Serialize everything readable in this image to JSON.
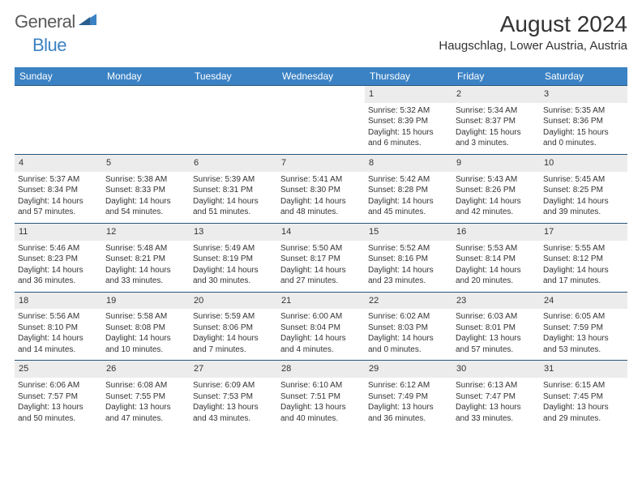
{
  "brand": {
    "text1": "General",
    "text2": "Blue"
  },
  "title": "August 2024",
  "location": "Haugschlag, Lower Austria, Austria",
  "header_bg": "#3b82c4",
  "header_fg": "#ffffff",
  "row_border": "#28567a",
  "daynum_bg": "#ececec",
  "weekdays": [
    "Sunday",
    "Monday",
    "Tuesday",
    "Wednesday",
    "Thursday",
    "Friday",
    "Saturday"
  ],
  "weeks": [
    [
      null,
      null,
      null,
      null,
      {
        "n": "1",
        "sr": "5:32 AM",
        "ss": "8:39 PM",
        "dl": "15 hours and 6 minutes."
      },
      {
        "n": "2",
        "sr": "5:34 AM",
        "ss": "8:37 PM",
        "dl": "15 hours and 3 minutes."
      },
      {
        "n": "3",
        "sr": "5:35 AM",
        "ss": "8:36 PM",
        "dl": "15 hours and 0 minutes."
      }
    ],
    [
      {
        "n": "4",
        "sr": "5:37 AM",
        "ss": "8:34 PM",
        "dl": "14 hours and 57 minutes."
      },
      {
        "n": "5",
        "sr": "5:38 AM",
        "ss": "8:33 PM",
        "dl": "14 hours and 54 minutes."
      },
      {
        "n": "6",
        "sr": "5:39 AM",
        "ss": "8:31 PM",
        "dl": "14 hours and 51 minutes."
      },
      {
        "n": "7",
        "sr": "5:41 AM",
        "ss": "8:30 PM",
        "dl": "14 hours and 48 minutes."
      },
      {
        "n": "8",
        "sr": "5:42 AM",
        "ss": "8:28 PM",
        "dl": "14 hours and 45 minutes."
      },
      {
        "n": "9",
        "sr": "5:43 AM",
        "ss": "8:26 PM",
        "dl": "14 hours and 42 minutes."
      },
      {
        "n": "10",
        "sr": "5:45 AM",
        "ss": "8:25 PM",
        "dl": "14 hours and 39 minutes."
      }
    ],
    [
      {
        "n": "11",
        "sr": "5:46 AM",
        "ss": "8:23 PM",
        "dl": "14 hours and 36 minutes."
      },
      {
        "n": "12",
        "sr": "5:48 AM",
        "ss": "8:21 PM",
        "dl": "14 hours and 33 minutes."
      },
      {
        "n": "13",
        "sr": "5:49 AM",
        "ss": "8:19 PM",
        "dl": "14 hours and 30 minutes."
      },
      {
        "n": "14",
        "sr": "5:50 AM",
        "ss": "8:17 PM",
        "dl": "14 hours and 27 minutes."
      },
      {
        "n": "15",
        "sr": "5:52 AM",
        "ss": "8:16 PM",
        "dl": "14 hours and 23 minutes."
      },
      {
        "n": "16",
        "sr": "5:53 AM",
        "ss": "8:14 PM",
        "dl": "14 hours and 20 minutes."
      },
      {
        "n": "17",
        "sr": "5:55 AM",
        "ss": "8:12 PM",
        "dl": "14 hours and 17 minutes."
      }
    ],
    [
      {
        "n": "18",
        "sr": "5:56 AM",
        "ss": "8:10 PM",
        "dl": "14 hours and 14 minutes."
      },
      {
        "n": "19",
        "sr": "5:58 AM",
        "ss": "8:08 PM",
        "dl": "14 hours and 10 minutes."
      },
      {
        "n": "20",
        "sr": "5:59 AM",
        "ss": "8:06 PM",
        "dl": "14 hours and 7 minutes."
      },
      {
        "n": "21",
        "sr": "6:00 AM",
        "ss": "8:04 PM",
        "dl": "14 hours and 4 minutes."
      },
      {
        "n": "22",
        "sr": "6:02 AM",
        "ss": "8:03 PM",
        "dl": "14 hours and 0 minutes."
      },
      {
        "n": "23",
        "sr": "6:03 AM",
        "ss": "8:01 PM",
        "dl": "13 hours and 57 minutes."
      },
      {
        "n": "24",
        "sr": "6:05 AM",
        "ss": "7:59 PM",
        "dl": "13 hours and 53 minutes."
      }
    ],
    [
      {
        "n": "25",
        "sr": "6:06 AM",
        "ss": "7:57 PM",
        "dl": "13 hours and 50 minutes."
      },
      {
        "n": "26",
        "sr": "6:08 AM",
        "ss": "7:55 PM",
        "dl": "13 hours and 47 minutes."
      },
      {
        "n": "27",
        "sr": "6:09 AM",
        "ss": "7:53 PM",
        "dl": "13 hours and 43 minutes."
      },
      {
        "n": "28",
        "sr": "6:10 AM",
        "ss": "7:51 PM",
        "dl": "13 hours and 40 minutes."
      },
      {
        "n": "29",
        "sr": "6:12 AM",
        "ss": "7:49 PM",
        "dl": "13 hours and 36 minutes."
      },
      {
        "n": "30",
        "sr": "6:13 AM",
        "ss": "7:47 PM",
        "dl": "13 hours and 33 minutes."
      },
      {
        "n": "31",
        "sr": "6:15 AM",
        "ss": "7:45 PM",
        "dl": "13 hours and 29 minutes."
      }
    ]
  ],
  "labels": {
    "sunrise": "Sunrise:",
    "sunset": "Sunset:",
    "daylight": "Daylight:"
  }
}
